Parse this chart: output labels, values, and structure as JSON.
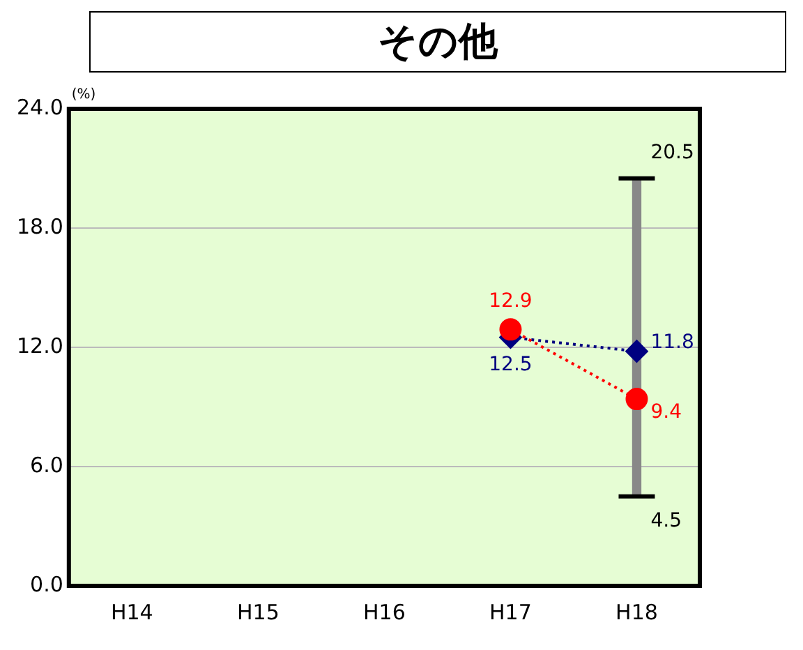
{
  "chart_data": {
    "type": "line",
    "title": "その他",
    "ylabel": "(%)",
    "categories": [
      "H14",
      "H15",
      "H16",
      "H17",
      "H18"
    ],
    "series": [
      {
        "type": "bar",
        "color": "#888888",
        "base": [
          null,
          null,
          null,
          null,
          4.5
        ],
        "values": [
          null,
          null,
          null,
          null,
          16
        ]
      },
      {
        "color": "#ff0000",
        "marker": "circle",
        "line_style": "dotted",
        "values": [
          null,
          null,
          null,
          12.9,
          9.4
        ],
        "value_labels": [
          null,
          null,
          null,
          "12.9",
          "9.4"
        ]
      },
      {
        "color": "#000080",
        "marker": "diamond",
        "line_style": "dotted",
        "values": [
          null,
          null,
          null,
          12.5,
          11.8
        ],
        "value_labels": [
          null,
          null,
          null,
          "12.5",
          "11.8"
        ]
      }
    ],
    "annotations": [
      {
        "text": "20.5",
        "x": "H18",
        "y": 20.5
      },
      {
        "text": "4.5",
        "x": "H18",
        "y": 4.5
      }
    ],
    "ylim": [
      0,
      24
    ],
    "yticks": [
      {
        "value": 0,
        "label": "0.0"
      },
      {
        "value": 6,
        "label": "6.0"
      },
      {
        "value": 12,
        "label": "12.0"
      },
      {
        "value": 18,
        "label": "18.0"
      },
      {
        "value": 24,
        "label": "24.0"
      }
    ],
    "grid": "y",
    "legend": false
  }
}
